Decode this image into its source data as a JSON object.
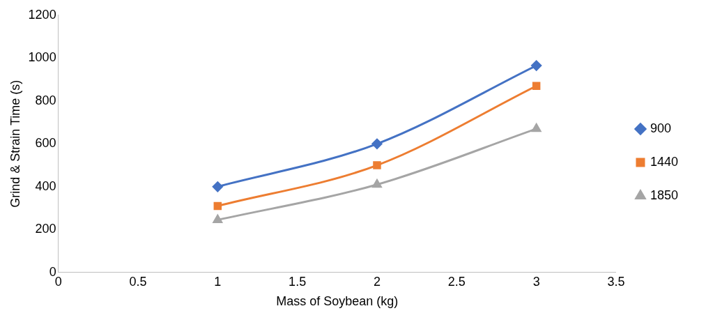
{
  "chart_data": {
    "type": "line",
    "xlabel": "Mass of Soybean (kg)",
    "ylabel": "Grind & Strain Time (s)",
    "x": [
      1,
      2,
      3
    ],
    "series": [
      {
        "name": "900",
        "color": "#4472c4",
        "marker": "diamond",
        "values": [
          400,
          600,
          965
        ]
      },
      {
        "name": "1440",
        "color": "#ed7d31",
        "marker": "square",
        "values": [
          310,
          500,
          870
        ]
      },
      {
        "name": "1850",
        "color": "#a5a5a5",
        "marker": "triangle",
        "values": [
          245,
          410,
          670
        ]
      }
    ],
    "xlim": [
      0,
      3.5
    ],
    "xticks": [
      0,
      0.5,
      1,
      1.5,
      2,
      2.5,
      3,
      3.5
    ],
    "ylim": [
      0,
      1200
    ],
    "yticks": [
      0,
      200,
      400,
      600,
      800,
      1000,
      1200
    ],
    "grid": false,
    "legend": "right",
    "line_style": "solid"
  }
}
